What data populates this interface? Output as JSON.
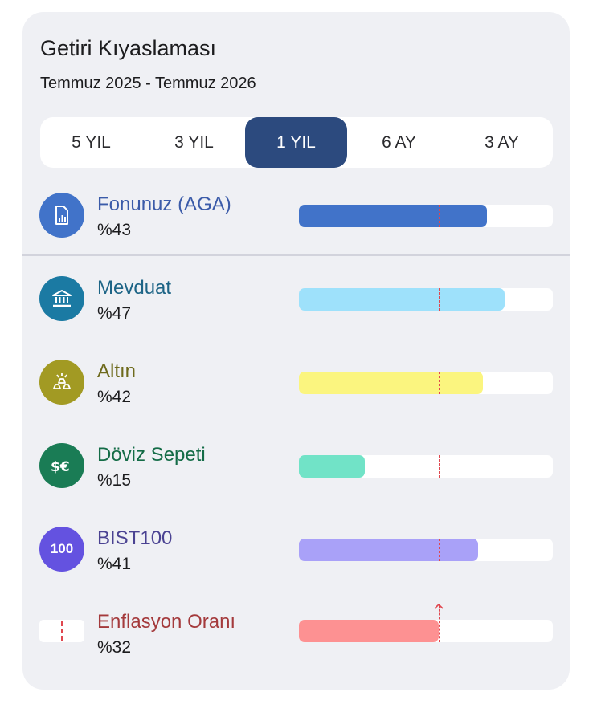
{
  "header": {
    "title": "Getiri Kıyaslaması",
    "period": "Temmuz 2025 - Temmuz 2026"
  },
  "tabs": [
    {
      "label": "5 YIL",
      "active": false
    },
    {
      "label": "3 YIL",
      "active": false
    },
    {
      "label": "1 YIL",
      "active": true
    },
    {
      "label": "6 AY",
      "active": false
    },
    {
      "label": "3 AY",
      "active": false
    }
  ],
  "fund": {
    "label": "Fonunuz (AGA)",
    "value_text": "%43",
    "percent": 43,
    "label_color": "#3b5ba9",
    "icon_color": "#4173c9",
    "bar_color": "#4173c9",
    "icon": "report-chart-icon"
  },
  "benchmarks": [
    {
      "label": "Mevduat",
      "value_text": "%47",
      "percent": 47,
      "label_color": "#1d6486",
      "icon_color": "#1b7aa3",
      "bar_color": "#9ee1fb",
      "icon": "bank-icon"
    },
    {
      "label": "Altın",
      "value_text": "%42",
      "percent": 42,
      "label_color": "#6e6a1c",
      "icon_color": "#a29a23",
      "bar_color": "#fbf57f",
      "icon": "gold-bars-icon"
    },
    {
      "label": "Döviz Sepeti",
      "value_text": "%15",
      "percent": 15,
      "label_color": "#146c47",
      "icon_color": "#1a7c55",
      "bar_color": "#71e3c7",
      "icon": "currency-exchange-icon"
    },
    {
      "label": "BIST100",
      "value_text": "%41",
      "percent": 41,
      "label_color": "#4a4292",
      "icon_color": "#6452e0",
      "bar_color": "#a9a1f8",
      "icon": "bist100-icon",
      "icon_text": "100"
    },
    {
      "label": "Enflasyon Oranı",
      "value_text": "%32",
      "percent": 32,
      "label_color": "#a43a3c",
      "icon_color": "#ffffff",
      "bar_color": "#fd9192",
      "icon": "inflation-marker-icon"
    }
  ],
  "scale": {
    "max_percent": 58,
    "inflation_percent": 32
  },
  "colors": {
    "marker": "#e0474f",
    "active_tab": "#2c4a7e"
  }
}
